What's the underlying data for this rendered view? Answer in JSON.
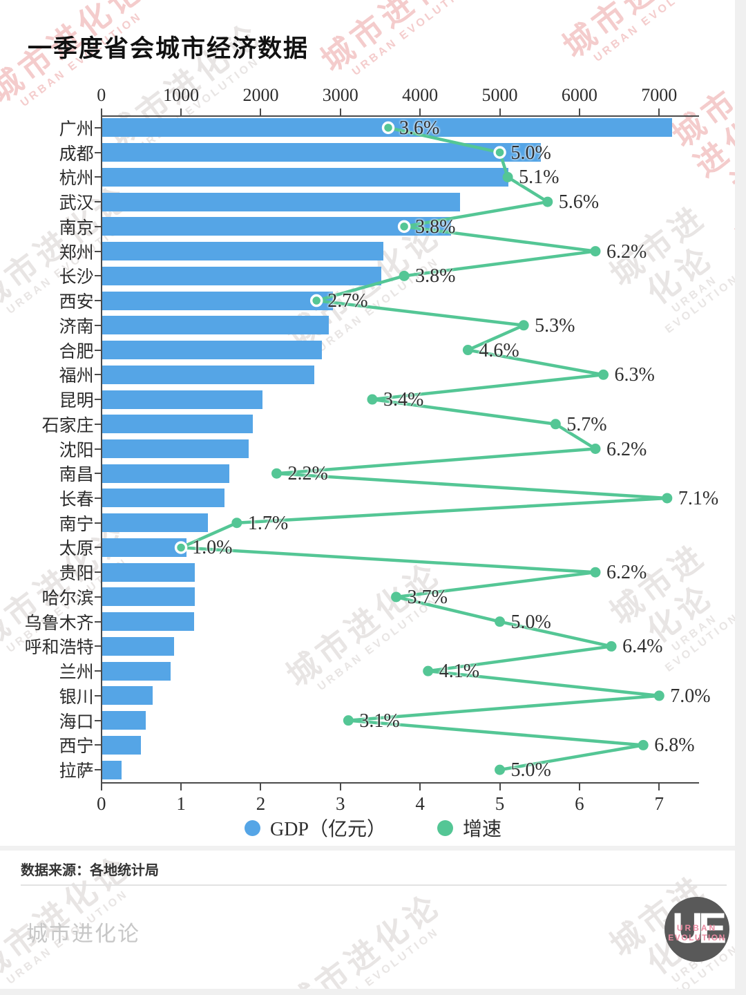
{
  "title": "一季度省会城市经济数据",
  "watermark": {
    "cn": "城市进化论",
    "en": "URBAN EVOLUTION"
  },
  "chart_data": {
    "type": "bar",
    "subtype": "horizontal-bar-with-line-overlay",
    "categories": [
      "广州",
      "成都",
      "杭州",
      "武汉",
      "南京",
      "郑州",
      "长沙",
      "西安",
      "济南",
      "合肥",
      "福州",
      "昆明",
      "石家庄",
      "沈阳",
      "南昌",
      "长春",
      "南宁",
      "太原",
      "贵阳",
      "哈尔滨",
      "乌鲁木齐",
      "呼和浩特",
      "兰州",
      "银川",
      "海口",
      "西宁",
      "拉萨"
    ],
    "series": [
      {
        "name": "GDP（亿元）",
        "type": "bar",
        "color": "#55a5e6",
        "values": [
          7161,
          5518,
          5112,
          4500,
          4388,
          3538,
          3510,
          2907,
          2852,
          2766,
          2670,
          2020,
          1903,
          1851,
          1610,
          1546,
          1337,
          1070,
          1175,
          1170,
          1164,
          910,
          867,
          645,
          555,
          500,
          257
        ]
      },
      {
        "name": "增速",
        "type": "line",
        "color": "#54c695",
        "unit": "%",
        "values": [
          3.6,
          5.0,
          5.1,
          5.6,
          3.8,
          6.2,
          3.8,
          2.7,
          5.3,
          4.6,
          6.3,
          3.4,
          5.7,
          6.2,
          2.2,
          7.1,
          1.7,
          1.0,
          6.2,
          3.7,
          5.0,
          6.4,
          4.1,
          7.0,
          3.1,
          6.8,
          5.0
        ],
        "labels": [
          "3.6%",
          "5.0%",
          "5.1%",
          "5.6%",
          "3.8%",
          "6.2%",
          "3.8%",
          "2.7%",
          "5.3%",
          "4.6%",
          "6.3%",
          "3.4%",
          "5.7%",
          "6.2%",
          "2.2%",
          "7.1%",
          "1.7%",
          "1.0%",
          "6.2%",
          "3.7%",
          "5.0%",
          "6.4%",
          "4.1%",
          "7.0%",
          "3.1%",
          "6.8%",
          "5.0%"
        ],
        "open_marker_indices": [
          0,
          1,
          4,
          7,
          17
        ]
      }
    ],
    "top_axis": {
      "label": "GDP（亿元）",
      "ticks": [
        0,
        1000,
        2000,
        3000,
        4000,
        5000,
        6000,
        7000
      ],
      "range": [
        0,
        7500
      ],
      "grid": false
    },
    "bottom_axis": {
      "label": "增速（%）",
      "ticks": [
        0,
        1,
        2,
        3,
        4,
        5,
        6,
        7
      ],
      "range": [
        0,
        7.5
      ],
      "grid": false
    },
    "legend_position": "bottom"
  },
  "legend": [
    {
      "label": "GDP（亿元）",
      "color": "#55a5e6"
    },
    {
      "label": "增速",
      "color": "#54c695"
    }
  ],
  "source": "数据来源：各地统计局",
  "footer": {
    "brand": "城市进化论",
    "logo": {
      "text": "UE",
      "sub1": "URBAN",
      "sub2": "EVOLUTION"
    }
  }
}
